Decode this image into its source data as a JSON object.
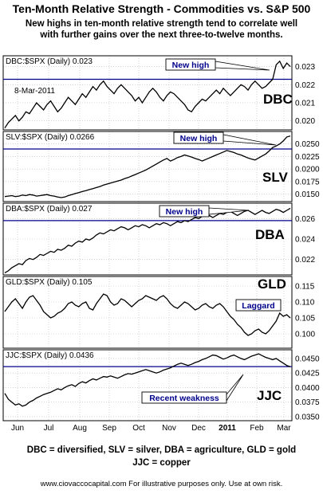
{
  "title": "Ten-Month Relative Strength - Commodities vs. S&P 500",
  "subtitle_line1": "New highs in ten-month relative strength tend to correlate well",
  "subtitle_line2": "with further gains over the next three-to-twelve months.",
  "caption_line1": "DBC = diversified, SLV = silver, DBA = agriculture, GLD = gold",
  "caption_line2": "JJC = copper",
  "footer": "www.ciovaccocapital.com  For illustrative purposes only.  Use at own risk.",
  "colors": {
    "line": "#000000",
    "reference_line": "#00008B",
    "annotation_text": "#00008B",
    "panel_border": "#000000",
    "grid": "#bbbbbb"
  },
  "chart_data": {
    "type": "line",
    "x_axis_ticks": [
      "Jun",
      "Jul",
      "Aug",
      "Sep",
      "Oct",
      "Nov",
      "Dec",
      "2011",
      "Feb",
      "Mar"
    ],
    "x_axis_ticks_bold": [
      "2011"
    ],
    "panels": [
      {
        "id": "dbc",
        "header": "DBC:$SPX (Daily) 0.023",
        "big_label": "DBC",
        "date_label": "8-Mar-2011",
        "ylim": [
          0.0195,
          0.0236
        ],
        "yticks": [
          "0.023",
          "0.022",
          "0.021",
          "0.020"
        ],
        "ytick_values": [
          0.023,
          0.022,
          0.021,
          0.02
        ],
        "reference_line": 0.0223,
        "annotation": "New high",
        "values": [
          0.0196,
          0.0199,
          0.0201,
          0.0203,
          0.02,
          0.0202,
          0.0205,
          0.0204,
          0.0207,
          0.021,
          0.0208,
          0.0206,
          0.0209,
          0.0211,
          0.0208,
          0.0205,
          0.0207,
          0.021,
          0.0213,
          0.0211,
          0.0209,
          0.0212,
          0.0215,
          0.0213,
          0.0216,
          0.0219,
          0.0217,
          0.022,
          0.0222,
          0.0219,
          0.0217,
          0.0215,
          0.0218,
          0.022,
          0.0218,
          0.0216,
          0.0214,
          0.0211,
          0.0213,
          0.021,
          0.0213,
          0.0216,
          0.0218,
          0.0216,
          0.0213,
          0.0211,
          0.0214,
          0.0216,
          0.0215,
          0.0213,
          0.0211,
          0.0209,
          0.0206,
          0.0205,
          0.0208,
          0.021,
          0.0212,
          0.0211,
          0.0213,
          0.0215,
          0.0217,
          0.0215,
          0.0218,
          0.0216,
          0.0214,
          0.0216,
          0.0218,
          0.022,
          0.0219,
          0.0217,
          0.022,
          0.0222,
          0.022,
          0.0218,
          0.0219,
          0.0221,
          0.0223,
          0.0231,
          0.0233,
          0.0229,
          0.0232,
          0.023
        ]
      },
      {
        "id": "slv",
        "header": "SLV:$SPX (Daily) 0.0266",
        "big_label": "SLV",
        "ylim": [
          0.0135,
          0.0275
        ],
        "yticks": [
          "0.0250",
          "0.0225",
          "0.0200",
          "0.0175",
          "0.0150"
        ],
        "ytick_values": [
          0.025,
          0.0225,
          0.02,
          0.0175,
          0.015
        ],
        "reference_line": 0.024,
        "annotation": "New high",
        "values": [
          0.0145,
          0.0146,
          0.0147,
          0.0145,
          0.0146,
          0.0148,
          0.0147,
          0.0149,
          0.0148,
          0.0146,
          0.0147,
          0.0148,
          0.0149,
          0.0147,
          0.0146,
          0.0144,
          0.0143,
          0.0144,
          0.0147,
          0.0149,
          0.0151,
          0.0153,
          0.0155,
          0.0157,
          0.0159,
          0.0161,
          0.0163,
          0.0165,
          0.0168,
          0.017,
          0.0172,
          0.0174,
          0.0176,
          0.0178,
          0.0181,
          0.0183,
          0.0186,
          0.0189,
          0.0192,
          0.0195,
          0.0198,
          0.0202,
          0.0206,
          0.021,
          0.0214,
          0.0218,
          0.0221,
          0.0216,
          0.0219,
          0.0223,
          0.0225,
          0.0228,
          0.0226,
          0.0224,
          0.0221,
          0.0219,
          0.0216,
          0.0219,
          0.0222,
          0.0225,
          0.0228,
          0.0231,
          0.0234,
          0.0237,
          0.0235,
          0.0233,
          0.023,
          0.0228,
          0.0225,
          0.0222,
          0.022,
          0.0218,
          0.0222,
          0.0226,
          0.023,
          0.0236,
          0.0243,
          0.0246,
          0.025,
          0.0256,
          0.0264,
          0.0266
        ]
      },
      {
        "id": "dba",
        "header": "DBA:$SPX (Daily) 0.027",
        "big_label": "DBA",
        "ylim": [
          0.0205,
          0.0275
        ],
        "yticks": [
          "0.026",
          "0.024",
          "0.022"
        ],
        "ytick_values": [
          0.026,
          0.024,
          0.022
        ],
        "reference_line": 0.0258,
        "annotation": "New high",
        "values": [
          0.0207,
          0.0209,
          0.0212,
          0.0214,
          0.0216,
          0.0215,
          0.0219,
          0.0221,
          0.022,
          0.0222,
          0.0225,
          0.0224,
          0.0226,
          0.0228,
          0.0227,
          0.023,
          0.0229,
          0.0231,
          0.0234,
          0.0233,
          0.0236,
          0.0238,
          0.0237,
          0.024,
          0.0239,
          0.0241,
          0.0244,
          0.0246,
          0.0245,
          0.0247,
          0.0249,
          0.0248,
          0.025,
          0.0252,
          0.0251,
          0.0249,
          0.0251,
          0.0253,
          0.0252,
          0.0254,
          0.0253,
          0.0251,
          0.0253,
          0.0255,
          0.0254,
          0.0256,
          0.0255,
          0.0253,
          0.0255,
          0.0257,
          0.0256,
          0.0258,
          0.0257,
          0.0259,
          0.0261,
          0.026,
          0.0262,
          0.0264,
          0.0263,
          0.0261,
          0.0263,
          0.0265,
          0.0264,
          0.0266,
          0.0267,
          0.0265,
          0.0263,
          0.0265,
          0.0267,
          0.0268,
          0.0266,
          0.0264,
          0.0266,
          0.0268,
          0.0266,
          0.0265,
          0.0267,
          0.0269,
          0.0268,
          0.0266,
          0.0268,
          0.027
        ]
      },
      {
        "id": "gld",
        "header": "GLD:$SPX (Daily) 0.105",
        "big_label": "GLD",
        "ylim": [
          0.0955,
          0.118
        ],
        "yticks": [
          "0.115",
          "0.110",
          "0.105",
          "0.100"
        ],
        "ytick_values": [
          0.115,
          0.11,
          0.105,
          0.1
        ],
        "annotation": "Laggard",
        "values": [
          0.107,
          0.1085,
          0.11,
          0.111,
          0.1095,
          0.108,
          0.11,
          0.1115,
          0.112,
          0.1105,
          0.109,
          0.107,
          0.106,
          0.105,
          0.1055,
          0.1065,
          0.107,
          0.108,
          0.1095,
          0.11,
          0.109,
          0.1085,
          0.1095,
          0.11,
          0.108,
          0.1075,
          0.1095,
          0.111,
          0.1125,
          0.112,
          0.11,
          0.109,
          0.1095,
          0.111,
          0.1105,
          0.1095,
          0.1085,
          0.1095,
          0.1105,
          0.111,
          0.112,
          0.1115,
          0.111,
          0.1105,
          0.1115,
          0.112,
          0.111,
          0.1095,
          0.1085,
          0.108,
          0.109,
          0.11,
          0.1095,
          0.1085,
          0.1075,
          0.108,
          0.109,
          0.1095,
          0.1085,
          0.108,
          0.109,
          0.1095,
          0.1085,
          0.107,
          0.1055,
          0.1045,
          0.103,
          0.102,
          0.1005,
          0.0995,
          0.1,
          0.101,
          0.1015,
          0.1005,
          0.1,
          0.101,
          0.1025,
          0.104,
          0.1065,
          0.1055,
          0.106,
          0.105
        ]
      },
      {
        "id": "jjc",
        "header": "JJC:$SPX (Daily) 0.0436",
        "big_label": "JJC",
        "ylim": [
          0.0343,
          0.0465
        ],
        "yticks": [
          "0.0450",
          "0.0425",
          "0.0400",
          "0.0375",
          "0.0350"
        ],
        "ytick_values": [
          0.045,
          0.0425,
          0.04,
          0.0375,
          0.035
        ],
        "reference_line": 0.0436,
        "annotation": "Recent weakness",
        "values": [
          0.039,
          0.038,
          0.0375,
          0.037,
          0.0372,
          0.0368,
          0.037,
          0.0375,
          0.0378,
          0.0382,
          0.0385,
          0.0388,
          0.039,
          0.0392,
          0.0395,
          0.0398,
          0.0396,
          0.04,
          0.0403,
          0.0405,
          0.0402,
          0.0407,
          0.041,
          0.0408,
          0.0412,
          0.0415,
          0.0413,
          0.0416,
          0.0419,
          0.0418,
          0.042,
          0.0418,
          0.0416,
          0.0419,
          0.0422,
          0.0424,
          0.0423,
          0.0425,
          0.0427,
          0.0429,
          0.0431,
          0.0429,
          0.0427,
          0.0425,
          0.0427,
          0.043,
          0.0432,
          0.0434,
          0.0437,
          0.044,
          0.0442,
          0.044,
          0.0438,
          0.044,
          0.0443,
          0.0445,
          0.0448,
          0.045,
          0.0453,
          0.0456,
          0.0455,
          0.0452,
          0.0449,
          0.0451,
          0.0454,
          0.0456,
          0.0453,
          0.045,
          0.0448,
          0.0451,
          0.0454,
          0.0456,
          0.0458,
          0.0455,
          0.0452,
          0.045,
          0.0448,
          0.045,
          0.0446,
          0.0442,
          0.0438,
          0.0436
        ]
      }
    ]
  }
}
